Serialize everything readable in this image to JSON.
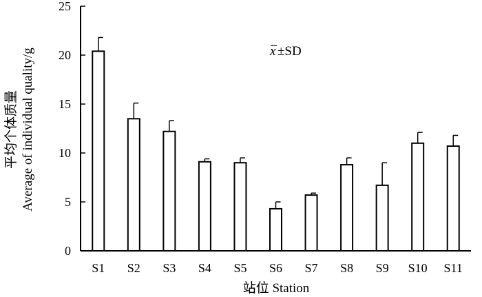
{
  "chart_data": {
    "type": "bar",
    "categories": [
      "S1",
      "S2",
      "S3",
      "S4",
      "S5",
      "S6",
      "S7",
      "S8",
      "S9",
      "S10",
      "S11"
    ],
    "series": [
      {
        "values": [
          20.4,
          13.5,
          12.2,
          9.1,
          9.0,
          4.3,
          5.7,
          8.8,
          6.7,
          11.0,
          10.7
        ],
        "errors": [
          1.4,
          1.6,
          1.1,
          0.3,
          0.5,
          0.7,
          0.2,
          0.7,
          2.3,
          1.1,
          1.1
        ]
      }
    ],
    "xlabel": "站位 Station",
    "ylabel_line1": "平均个体质量",
    "ylabel_line2": "Average of individual quality/g",
    "ylim": [
      0,
      25
    ],
    "yticks": [
      "0",
      "5",
      "10",
      "15",
      "20",
      "25"
    ],
    "annotation": {
      "symbol": "x",
      "text": "±SD"
    },
    "grid": false,
    "bar_fill": "#ffffff",
    "bar_stroke": "#000000"
  }
}
